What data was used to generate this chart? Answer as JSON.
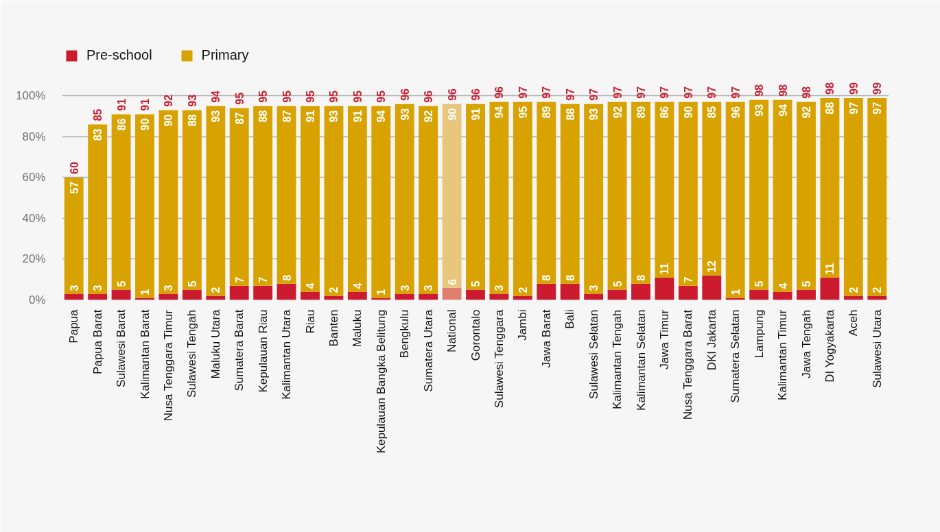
{
  "chart_data": {
    "type": "bar",
    "stacked": true,
    "categories": [
      "Papua",
      "Papua Barat",
      "Sulawesi Barat",
      "Kalimantan Barat",
      "Nusa Tenggara Timur",
      "Sulawesi Tengah",
      "Maluku Utara",
      "Sumatera Barat",
      "Kepulauan Riau",
      "Kalimantan Utara",
      "Riau",
      "Banten",
      "Maluku",
      "Kepulauan Bangka Belitung",
      "Bengkulu",
      "Sumatera Utara",
      "National",
      "Gorontalo",
      "Sulawesi Tenggara",
      "Jambi",
      "Jawa Barat",
      "Bali",
      "Sulawesi Selatan",
      "Kalimantan Tengah",
      "Kalimantan Selatan",
      "Jawa Timur",
      "Nusa Tenggara Barat",
      "DKI Jakarta",
      "Sumatera Selatan",
      "Lampung",
      "Kalimantan Timur",
      "Jawa Tengah",
      "DI Yogyakarta",
      "Aceh",
      "Sulawesi Utara"
    ],
    "series": [
      {
        "name": "Pre-school",
        "color": "#cc1a2e",
        "colors": [
          "#cc1a2e",
          "#cc1a2e",
          "#cc1a2e",
          "#cc1a2e",
          "#cc1a2e",
          "#cc1a2e",
          "#cc1a2e",
          "#cc1a2e",
          "#cc1a2e",
          "#cc1a2e",
          "#cc1a2e",
          "#cc1a2e",
          "#cc1a2e",
          "#cc1a2e",
          "#cc1a2e",
          "#cc1a2e",
          "#e07f70",
          "#cc1a2e",
          "#cc1a2e",
          "#cc1a2e",
          "#cc1a2e",
          "#cc1a2e",
          "#cc1a2e",
          "#cc1a2e",
          "#cc1a2e",
          "#cc1a2e",
          "#cc1a2e",
          "#cc1a2e",
          "#cc1a2e",
          "#cc1a2e",
          "#cc1a2e",
          "#cc1a2e",
          "#cc1a2e",
          "#cc1a2e",
          "#cc1a2e"
        ],
        "values": [
          3,
          3,
          5,
          1,
          3,
          5,
          2,
          7,
          7,
          8,
          4,
          2,
          4,
          1,
          3,
          3,
          6,
          5,
          3,
          2,
          8,
          8,
          3,
          5,
          8,
          11,
          7,
          12,
          1,
          5,
          4,
          5,
          11,
          2,
          2
        ]
      },
      {
        "name": "Primary",
        "color": "#d8a300",
        "colors": [
          "#d8a300",
          "#d8a300",
          "#d8a300",
          "#d8a300",
          "#d8a300",
          "#d8a300",
          "#d8a300",
          "#d8a300",
          "#d8a300",
          "#d8a300",
          "#d8a300",
          "#d8a300",
          "#d8a300",
          "#d8a300",
          "#d8a300",
          "#d8a300",
          "#e8c67b",
          "#d8a300",
          "#d8a300",
          "#d8a300",
          "#d8a300",
          "#d8a300",
          "#d8a300",
          "#d8a300",
          "#d8a300",
          "#d8a300",
          "#d8a300",
          "#d8a300",
          "#d8a300",
          "#d8a300",
          "#d8a300",
          "#d8a300",
          "#d8a300",
          "#d8a300",
          "#d8a300"
        ],
        "values": [
          57,
          83,
          86,
          90,
          90,
          88,
          93,
          87,
          88,
          87,
          91,
          93,
          91,
          94,
          93,
          92,
          90,
          91,
          94,
          95,
          89,
          88,
          93,
          92,
          89,
          86,
          90,
          85,
          96,
          93,
          94,
          92,
          88,
          97,
          97
        ]
      }
    ],
    "totals": [
      "60",
      "85",
      "91",
      "91",
      "92",
      "93",
      "94",
      "95",
      "95",
      "95",
      "95",
      "95",
      "95",
      "95",
      "96",
      "96",
      "96",
      "96",
      "96",
      "97",
      "97",
      "97",
      "97",
      "97",
      "97",
      "97",
      "97",
      "97",
      "97",
      "98",
      "98",
      "98",
      "98",
      "99",
      "99"
    ],
    "data_labels": true,
    "ylim": [
      0,
      125
    ],
    "yticks": [
      {
        "value": 0,
        "label": "0%"
      },
      {
        "value": 20,
        "label": "20%"
      },
      {
        "value": 40,
        "label": "40%"
      },
      {
        "value": 60,
        "label": "60%"
      },
      {
        "value": 80,
        "label": "80%"
      },
      {
        "value": 100,
        "label": "100%"
      }
    ],
    "grid": "y",
    "legend": "top left"
  }
}
